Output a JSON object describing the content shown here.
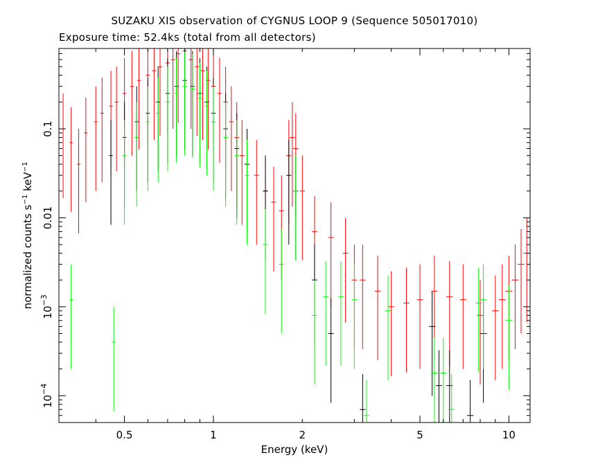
{
  "chart_data": {
    "type": "scatter",
    "title": "SUZAKU XIS observation of CYGNUS LOOP 9 (Sequence 505017010)",
    "subtitle": "Exposure time: 52.4ks (total from all detectors)",
    "xlabel": "Energy (keV)",
    "ylabel_parts": {
      "text": "normalized counts s",
      "exp1": "−1",
      "mid": " keV",
      "exp2": "−1"
    },
    "xscale": "log",
    "yscale": "log",
    "xlim": [
      0.3,
      11.8
    ],
    "ylim": [
      5e-05,
      0.8
    ],
    "xticks": [
      {
        "value": 0.5,
        "label": "0.5"
      },
      {
        "value": 1,
        "label": "1"
      },
      {
        "value": 2,
        "label": "2"
      },
      {
        "value": 5,
        "label": "5"
      },
      {
        "value": 10,
        "label": "10"
      }
    ],
    "yticks": [
      {
        "value": 0.1,
        "label": "0.1",
        "base": "0.1",
        "exp": ""
      },
      {
        "value": 0.01,
        "label": "0.01",
        "base": "0.01",
        "exp": ""
      },
      {
        "value": 0.001,
        "label": "10-3",
        "base": "10",
        "exp": "−3"
      },
      {
        "value": 0.0001,
        "label": "10-4",
        "base": "10",
        "exp": "−4"
      }
    ],
    "series": [
      {
        "color": "#ff0000",
        "points": [
          [
            0.31,
            0.1
          ],
          [
            0.33,
            0.07
          ],
          [
            0.35,
            0.04
          ],
          [
            0.37,
            0.09
          ],
          [
            0.4,
            0.12
          ],
          [
            0.42,
            0.15
          ],
          [
            0.45,
            0.18
          ],
          [
            0.47,
            0.2
          ],
          [
            0.5,
            0.25
          ],
          [
            0.53,
            0.3
          ],
          [
            0.56,
            0.35
          ],
          [
            0.6,
            0.4
          ],
          [
            0.63,
            0.45
          ],
          [
            0.66,
            0.5
          ],
          [
            0.7,
            0.55
          ],
          [
            0.73,
            0.6
          ],
          [
            0.76,
            0.7
          ],
          [
            0.8,
            0.75
          ],
          [
            0.84,
            0.6
          ],
          [
            0.88,
            0.5
          ],
          [
            0.92,
            0.45
          ],
          [
            0.96,
            0.35
          ],
          [
            1.0,
            0.3
          ],
          [
            1.05,
            0.25
          ],
          [
            1.1,
            0.2
          ],
          [
            1.15,
            0.12
          ],
          [
            1.2,
            0.08
          ],
          [
            1.25,
            0.05
          ],
          [
            1.3,
            0.04
          ],
          [
            1.4,
            0.03
          ],
          [
            1.5,
            0.02
          ],
          [
            1.6,
            0.015
          ],
          [
            1.7,
            0.012
          ],
          [
            1.8,
            0.05
          ],
          [
            1.85,
            0.08
          ],
          [
            1.9,
            0.06
          ],
          [
            2.0,
            0.02
          ],
          [
            2.2,
            0.007
          ],
          [
            2.5,
            0.006
          ],
          [
            2.8,
            0.004
          ],
          [
            3.0,
            0.002
          ],
          [
            3.2,
            0.002
          ],
          [
            3.6,
            0.0015
          ],
          [
            4.0,
            0.001
          ],
          [
            4.5,
            0.0011
          ],
          [
            5.0,
            0.0012
          ],
          [
            5.6,
            0.0015
          ],
          [
            6.3,
            0.0013
          ],
          [
            7.0,
            0.0012
          ],
          [
            8.0,
            0.0008
          ],
          [
            9.0,
            0.0009
          ],
          [
            9.5,
            0.0012
          ],
          [
            10.0,
            0.0015
          ],
          [
            10.5,
            0.002
          ],
          [
            11.0,
            0.003
          ],
          [
            11.5,
            0.004
          ]
        ]
      },
      {
        "color": "#000000",
        "points": [
          [
            0.45,
            0.05
          ],
          [
            0.5,
            0.08
          ],
          [
            0.55,
            0.12
          ],
          [
            0.6,
            0.15
          ],
          [
            0.65,
            0.2
          ],
          [
            0.7,
            0.25
          ],
          [
            0.75,
            0.3
          ],
          [
            0.8,
            0.35
          ],
          [
            0.85,
            0.3
          ],
          [
            0.9,
            0.25
          ],
          [
            0.95,
            0.2
          ],
          [
            1.0,
            0.15
          ],
          [
            1.1,
            0.1
          ],
          [
            1.2,
            0.06
          ],
          [
            1.3,
            0.04
          ],
          [
            1.5,
            0.02
          ],
          [
            1.8,
            0.03
          ],
          [
            1.9,
            0.02
          ],
          [
            2.2,
            0.002
          ],
          [
            2.5,
            0.0005
          ],
          [
            3.2,
            7e-05
          ],
          [
            5.5,
            0.0006
          ],
          [
            5.8,
            0.00013
          ],
          [
            6.3,
            0.00013
          ],
          [
            7.4,
            6e-05
          ],
          [
            8.2,
            0.0005
          ]
        ]
      },
      {
        "color": "#00ff00",
        "points": [
          [
            0.33,
            0.0012
          ],
          [
            0.46,
            0.0004
          ],
          [
            0.5,
            0.05
          ],
          [
            0.55,
            0.08
          ],
          [
            0.6,
            0.12
          ],
          [
            0.65,
            0.15
          ],
          [
            0.7,
            0.2
          ],
          [
            0.75,
            0.25
          ],
          [
            0.8,
            0.3
          ],
          [
            0.85,
            0.28
          ],
          [
            0.9,
            0.22
          ],
          [
            0.95,
            0.18
          ],
          [
            1.0,
            0.12
          ],
          [
            1.1,
            0.08
          ],
          [
            1.2,
            0.05
          ],
          [
            1.3,
            0.03
          ],
          [
            1.5,
            0.005
          ],
          [
            1.7,
            0.003
          ],
          [
            1.9,
            0.02
          ],
          [
            2.2,
            0.0008
          ],
          [
            2.4,
            0.0013
          ],
          [
            2.7,
            0.0013
          ],
          [
            3.0,
            0.0012
          ],
          [
            3.3,
            6e-05
          ],
          [
            3.9,
            0.0009
          ],
          [
            5.6,
            0.00018
          ],
          [
            6.0,
            0.00018
          ],
          [
            6.4,
            7e-05
          ],
          [
            7.9,
            0.0011
          ],
          [
            8.2,
            0.0012
          ],
          [
            10.0,
            0.0007
          ]
        ]
      }
    ]
  }
}
